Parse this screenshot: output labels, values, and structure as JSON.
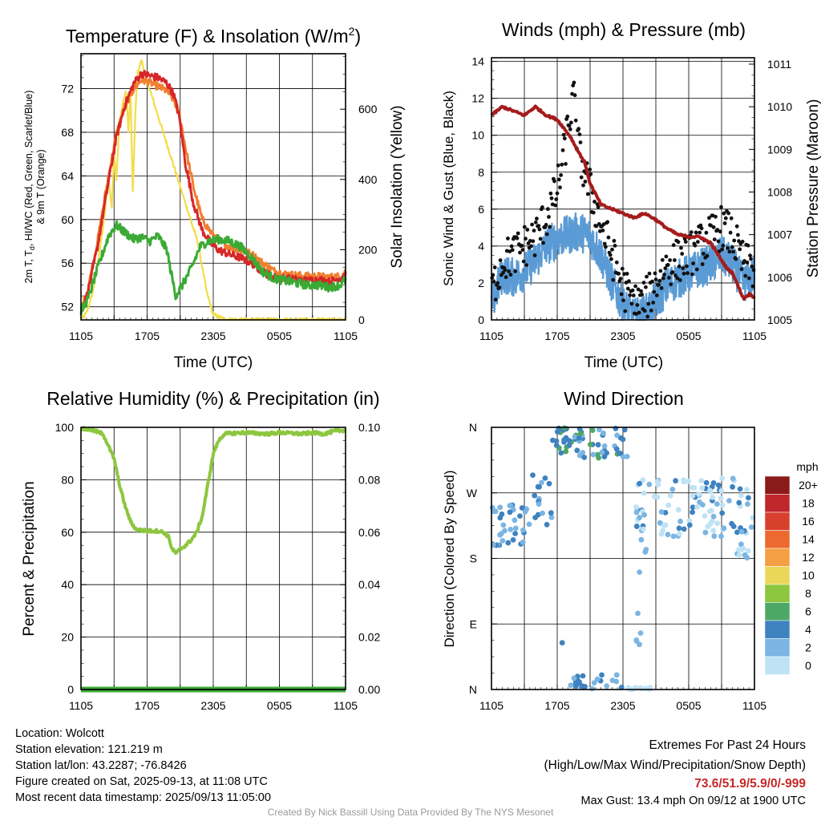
{
  "chart_data": [
    {
      "type": "line",
      "title": "Temperature (F) & Insolation (W/m",
      "title_sup": "2",
      "title_end": ")",
      "xlabel": "Time (UTC)",
      "ylabel_left_1": "2m T, T",
      "ylabel_left_sub": "d",
      "ylabel_left_2": ", HI/WC (Red, Green, Scarlet/Blue)",
      "ylabel_left_3": "& 9m T (Orange)",
      "ylabel_right": "Solar Insolation (Yellow)",
      "x_ticks": [
        "1105",
        "1705",
        "2305",
        "0505",
        "1105"
      ],
      "x_range_hours": [
        0,
        24
      ],
      "y_left_ticks": [
        52,
        56,
        60,
        64,
        68,
        72
      ],
      "y_left_range": [
        50.8,
        75.2
      ],
      "y_right_ticks": [
        0,
        200,
        400,
        600
      ],
      "y_right_range": [
        0,
        758
      ],
      "series": [
        {
          "color": "#d62728",
          "x": [
            0,
            0.6,
            1.5,
            2.5,
            3.2,
            4.0,
            4.8,
            5.5,
            6.2,
            7.0,
            7.8,
            8.4,
            8.9,
            9.5,
            10.2,
            11.0,
            11.8,
            12.5,
            13.5,
            14.5,
            15.5,
            16.5,
            17.5,
            18.5,
            19.5,
            20.5,
            21.5,
            22.5,
            23.5,
            24.0
          ],
          "y": [
            51.5,
            53.2,
            57.5,
            63.5,
            67.5,
            70.5,
            72.5,
            73.4,
            73.2,
            73.0,
            72.5,
            71.5,
            69.5,
            65.0,
            61.5,
            59.0,
            57.8,
            57.2,
            56.8,
            56.5,
            56.0,
            55.2,
            54.7,
            54.6,
            54.5,
            54.4,
            54.5,
            54.3,
            54.6,
            55.0
          ]
        },
        {
          "color": "#f07f30",
          "x": [
            0,
            0.6,
            1.5,
            2.5,
            3.2,
            4.0,
            4.8,
            5.5,
            6.2,
            7.0,
            7.8,
            8.4,
            8.9,
            9.5,
            10.2,
            11.0,
            11.8,
            12.5,
            13.5,
            14.5,
            15.5,
            16.5,
            17.5,
            18.5,
            19.5,
            20.5,
            21.5,
            22.5,
            23.5,
            24.0
          ],
          "y": [
            51.8,
            53.5,
            58.0,
            64.0,
            67.8,
            70.5,
            72.0,
            72.8,
            72.6,
            72.2,
            71.8,
            71.0,
            69.8,
            66.5,
            63.0,
            60.0,
            58.8,
            58.0,
            57.5,
            57.2,
            56.8,
            56.0,
            55.3,
            55.0,
            54.9,
            54.8,
            54.8,
            54.7,
            54.8,
            55.2
          ]
        },
        {
          "color": "#3aaa35",
          "x": [
            0,
            0.6,
            1.5,
            2.5,
            3.2,
            4.0,
            4.8,
            5.5,
            6.2,
            7.0,
            7.8,
            8.1,
            8.6,
            9.2,
            10.0,
            10.8,
            11.5,
            12.5,
            13.5,
            14.5,
            15.5,
            16.5,
            17.5,
            18.5,
            19.5,
            20.5,
            21.5,
            22.5,
            23.5,
            24.0
          ],
          "y": [
            51.6,
            52.6,
            55.5,
            58.5,
            59.5,
            58.8,
            58.2,
            58.4,
            58.0,
            58.5,
            57.2,
            55.5,
            53.0,
            54.0,
            55.5,
            57.5,
            58.0,
            58.2,
            58.0,
            57.5,
            56.5,
            55.2,
            54.6,
            54.4,
            54.2,
            54.0,
            54.0,
            53.8,
            54.0,
            54.5
          ]
        },
        {
          "color": "#f3dd4a",
          "x": [
            0,
            0.5,
            1.0,
            1.3,
            1.6,
            2.0,
            2.5,
            2.8,
            3.0,
            3.2,
            3.5,
            3.8,
            4.1,
            4.3,
            4.5,
            4.7,
            4.9,
            5.1,
            5.3,
            5.5,
            5.8,
            6.2,
            6.6,
            7.0,
            7.6,
            8.2,
            8.8,
            9.4,
            10.0,
            10.6,
            11.0,
            11.4,
            12.0,
            13.0,
            14.0,
            16.0,
            18.0,
            20.0,
            22.0,
            24.0
          ],
          "y": [
            0,
            20,
            70,
            120,
            180,
            260,
            400,
            320,
            480,
            400,
            560,
            620,
            650,
            540,
            640,
            360,
            560,
            700,
            720,
            740,
            700,
            660,
            620,
            580,
            520,
            460,
            400,
            340,
            280,
            220,
            150,
            80,
            15,
            2,
            0,
            0,
            0,
            0,
            0,
            0
          ]
        }
      ]
    },
    {
      "type": "line",
      "title": "Winds (mph) & Pressure (mb)",
      "xlabel": "Time (UTC)",
      "ylabel_left": "Sonic Wind & Gust (Blue, Black)",
      "ylabel_right": "Station Pressure (Maroon)",
      "x_ticks": [
        "1105",
        "1705",
        "2305",
        "0505",
        "1105"
      ],
      "x_range_hours": [
        0,
        24
      ],
      "y_left_ticks": [
        0,
        2,
        4,
        6,
        8,
        10,
        12,
        14
      ],
      "y_left_range": [
        0,
        14.2
      ],
      "y_right_ticks": [
        1005,
        1006,
        1007,
        1008,
        1009,
        1010,
        1011
      ],
      "y_right_range": [
        1005,
        1011.15
      ],
      "series": [
        {
          "name": "",
          "color": "#a51c1c",
          "x": [
            0,
            1,
            2,
            3,
            4,
            5,
            6,
            6.6,
            7.2,
            7.8,
            8.5,
            9,
            10,
            11,
            12,
            13,
            14,
            15,
            16,
            17,
            18,
            19,
            20,
            20.5,
            21,
            21.5,
            22,
            22.5,
            23,
            23.5,
            24
          ],
          "y": [
            1009.8,
            1010.0,
            1009.9,
            1009.8,
            1010.0,
            1009.8,
            1009.7,
            1009.5,
            1009.3,
            1009.0,
            1008.7,
            1008.2,
            1007.7,
            1007.6,
            1007.5,
            1007.4,
            1007.5,
            1007.35,
            1007.15,
            1007.0,
            1006.95,
            1006.95,
            1006.8,
            1006.6,
            1006.4,
            1006.2,
            1006.1,
            1005.8,
            1005.5,
            1005.6,
            1005.55
          ]
        },
        {
          "name": "",
          "color": "#5b9bd5",
          "x": [
            0,
            1,
            2,
            3,
            4,
            5,
            6,
            7,
            8,
            9,
            10,
            11,
            12,
            13,
            14,
            15,
            16,
            17,
            18,
            19,
            20,
            21,
            22,
            23,
            24
          ],
          "y": [
            0.8,
            2.5,
            2.3,
            2.6,
            3.2,
            4.0,
            4.4,
            4.6,
            4.8,
            4.5,
            3.5,
            2.0,
            0.8,
            0.1,
            0.3,
            1.0,
            1.8,
            2.2,
            2.5,
            2.8,
            3.0,
            3.5,
            3.0,
            2.0,
            2.4
          ]
        },
        {
          "name": "",
          "color": "#111111",
          "x": [
            0,
            1,
            2,
            3,
            4,
            5,
            6,
            6.5,
            7,
            7.5,
            8,
            9,
            10,
            11,
            12,
            13,
            14,
            15,
            16,
            17,
            18,
            19,
            20,
            21,
            22,
            23,
            24
          ],
          "y": [
            1.5,
            3.2,
            3.5,
            4.0,
            4.5,
            5.5,
            7.0,
            8.5,
            10.5,
            12.0,
            9.0,
            7.0,
            5.2,
            3.5,
            1.8,
            0.8,
            1.0,
            2.0,
            3.0,
            3.2,
            3.5,
            4.0,
            4.5,
            5.0,
            4.5,
            3.0,
            2.8
          ]
        }
      ]
    },
    {
      "type": "line",
      "title": "Relative Humidity (%) & Precipitation (in)",
      "ylabel_left": "Percent & Precipitation",
      "x_ticks": [
        "1105",
        "1705",
        "2305",
        "0505",
        "1105"
      ],
      "x_range_hours": [
        0,
        24
      ],
      "y_left_ticks": [
        0,
        20,
        40,
        60,
        80,
        100
      ],
      "y_left_range": [
        0,
        100
      ],
      "y_right_ticks": [
        "0.00",
        "0.02",
        "0.04",
        "0.06",
        "0.08",
        "0.10"
      ],
      "y_right_range": [
        0,
        0.1
      ],
      "series": [
        {
          "name": "",
          "color": "#8dc63f",
          "x": [
            0,
            1,
            2,
            3,
            3.5,
            4,
            4.5,
            5,
            6,
            7,
            7.5,
            8,
            8.2,
            8.6,
            9,
            9.5,
            10,
            10.5,
            11,
            11.5,
            12,
            12.5,
            13,
            14,
            15,
            16,
            17,
            18,
            19,
            20,
            21,
            22,
            23,
            24
          ],
          "y": [
            99.5,
            99.0,
            97.5,
            88.0,
            78.0,
            70.0,
            64.0,
            61.0,
            60.5,
            60.5,
            60.0,
            58.0,
            54.0,
            52.0,
            53.5,
            55.0,
            57.0,
            60.0,
            66.0,
            78.0,
            90.0,
            95.0,
            97.5,
            97.8,
            98.0,
            97.7,
            97.5,
            98.0,
            97.8,
            97.5,
            98.0,
            97.5,
            98.5,
            99.0
          ]
        },
        {
          "name": "",
          "color": "#2e7d32",
          "x": [
            0,
            24
          ],
          "y": [
            0,
            0
          ]
        }
      ]
    },
    {
      "type": "scatter",
      "title": "Wind Direction",
      "ylabel_left": "Direction (Colored By Speed)",
      "x_ticks": [
        "1105",
        "1705",
        "2305",
        "0505",
        "1105"
      ],
      "x_range_hours": [
        0,
        24
      ],
      "y_ticks": [
        "N",
        "E",
        "S",
        "W",
        "N"
      ],
      "y_range_deg": [
        0,
        360
      ],
      "legend_title": "mph",
      "legend_labels": [
        "20+",
        "18",
        "16",
        "14",
        "12",
        "10",
        "8",
        "6",
        "4",
        "2",
        "0"
      ],
      "legend_colors": [
        "#8b1a1a",
        "#c0272d",
        "#d7402d",
        "#ec6a2f",
        "#f49f44",
        "#ead75a",
        "#8dc63f",
        "#4da865",
        "#3f82c0",
        "#7cb5e2",
        "#bfe2f5"
      ],
      "clusters": [
        {
          "x_range": [
            0,
            3.2
          ],
          "dir_range": [
            195,
            255
          ],
          "count": 34,
          "colors": [
            "#7cb5e2",
            "#3f82c0",
            "#7cb5e2"
          ]
        },
        {
          "x_range": [
            3.0,
            5.5
          ],
          "dir_range": [
            220,
            300
          ],
          "count": 18,
          "colors": [
            "#7cb5e2",
            "#3f82c0"
          ]
        },
        {
          "x_range": [
            5.5,
            12.5
          ],
          "dir_range": [
            318,
            360
          ],
          "count": 60,
          "colors": [
            "#3f82c0",
            "#3f82c0",
            "#7cb5e2",
            "#4da865"
          ]
        },
        {
          "x_range": [
            7.2,
            12.0
          ],
          "dir_range": [
            0,
            22
          ],
          "count": 24,
          "colors": [
            "#3f82c0",
            "#7cb5e2"
          ]
        },
        {
          "x_range": [
            12.5,
            14.5
          ],
          "dir_range": [
            0,
            3
          ],
          "count": 14,
          "colors": [
            "#bfe2f5"
          ]
        },
        {
          "x_range": [
            13.2,
            14.2
          ],
          "dir_range": [
            40,
            220
          ],
          "count": 10,
          "colors": [
            "#7cb5e2"
          ]
        },
        {
          "x_range": [
            13.0,
            24
          ],
          "dir_range": [
            210,
            290
          ],
          "count": 110,
          "colors": [
            "#bfe2f5",
            "#bfe2f5",
            "#7cb5e2",
            "#3f82c0"
          ]
        },
        {
          "x_range": [
            22.2,
            23.5
          ],
          "dir_range": [
            175,
            225
          ],
          "count": 10,
          "colors": [
            "#bfe2f5",
            "#7cb5e2"
          ]
        },
        {
          "x_range": [
            6.2,
            6.5
          ],
          "dir_range": [
            60,
            70
          ],
          "count": 1,
          "colors": [
            "#3f82c0"
          ]
        }
      ]
    }
  ],
  "footer": {
    "location": "Location: Wolcott",
    "elevation": "Station elevation: 121.219 m",
    "latlon": "Station lat/lon: 43.2287; -76.8426",
    "created": "Figure created on Sat, 2025-09-13, at 11:08 UTC",
    "recent": "Most recent data timestamp: 2025/09/13 11:05:00",
    "extremes_title": "Extremes For Past 24 Hours",
    "extremes_fields": "(High/Low/Max Wind/Precipitation/Snow Depth)",
    "extremes_values": "73.6/51.9/5.9/0/-999",
    "max_gust": "Max Gust: 13.4 mph On 09/12 at 1900 UTC",
    "credit": "Created By Nick Bassill Using Data Provided By The NYS Mesonet"
  }
}
